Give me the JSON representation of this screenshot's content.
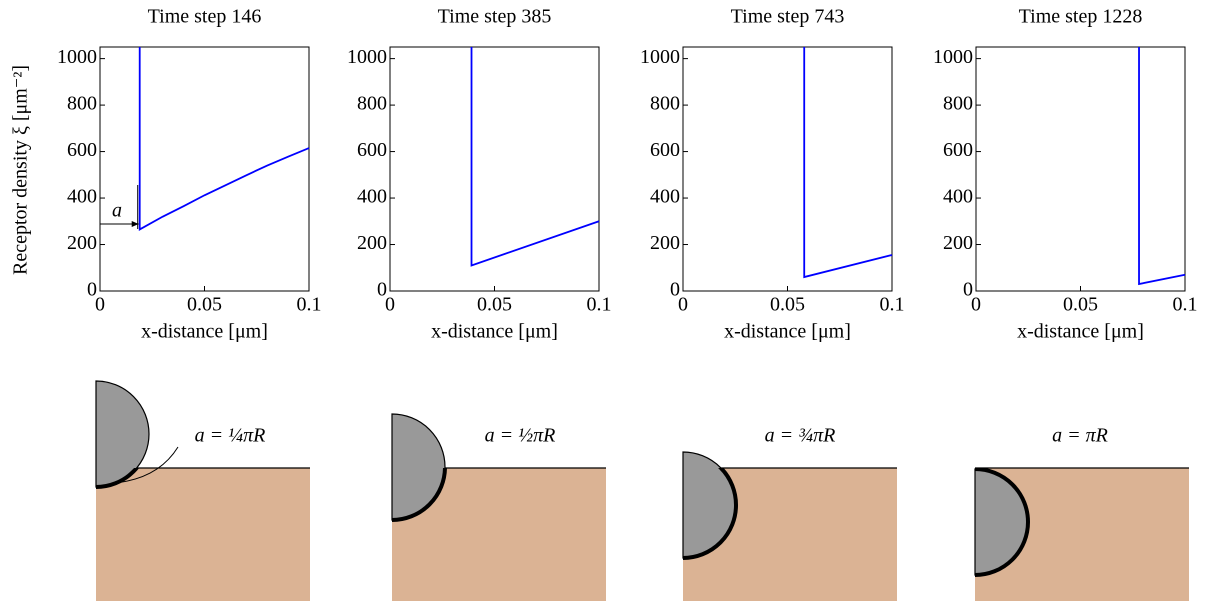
{
  "chart_data": [
    {
      "type": "line",
      "title": "Time step 146",
      "xlabel": "x-distance [μm]",
      "ylabel": "Receptor density ξ [μm⁻²]",
      "xlim": [
        0,
        0.1
      ],
      "ylim": [
        0,
        1050
      ],
      "xticks": [
        0,
        0.05,
        0.1
      ],
      "yticks": [
        0,
        200,
        400,
        600,
        800,
        1000
      ],
      "annotation": "a",
      "series": [
        {
          "color": "#0000ff",
          "x": [
            0.019,
            0.019,
            0.03,
            0.04,
            0.05,
            0.06,
            0.07,
            0.08,
            0.09,
            0.1
          ],
          "values": [
            1050,
            265,
            320,
            365,
            412,
            455,
            498,
            540,
            578,
            615
          ]
        }
      ]
    },
    {
      "type": "line",
      "title": "Time step 385",
      "xlabel": "x-distance [μm]",
      "xlim": [
        0,
        0.1
      ],
      "ylim": [
        0,
        1050
      ],
      "xticks": [
        0,
        0.05,
        0.1
      ],
      "yticks": [
        0,
        200,
        400,
        600,
        800,
        1000
      ],
      "series": [
        {
          "color": "#0000ff",
          "x": [
            0.039,
            0.039,
            0.1
          ],
          "values": [
            1050,
            110,
            300
          ]
        }
      ]
    },
    {
      "type": "line",
      "title": "Time step 743",
      "xlabel": "x-distance [μm]",
      "xlim": [
        0,
        0.1
      ],
      "ylim": [
        0,
        1050
      ],
      "xticks": [
        0,
        0.05,
        0.1
      ],
      "yticks": [
        0,
        200,
        400,
        600,
        800,
        1000
      ],
      "series": [
        {
          "color": "#0000ff",
          "x": [
            0.058,
            0.058,
            0.1
          ],
          "values": [
            1050,
            60,
            155
          ]
        }
      ]
    },
    {
      "type": "line",
      "title": "Time step 1228",
      "xlabel": "x-distance [μm]",
      "xlim": [
        0,
        0.1
      ],
      "ylim": [
        0,
        1050
      ],
      "xticks": [
        0,
        0.05,
        0.1
      ],
      "yticks": [
        0,
        200,
        400,
        600,
        800,
        1000
      ],
      "series": [
        {
          "color": "#0000ff",
          "x": [
            0.078,
            0.078,
            0.1
          ],
          "values": [
            1050,
            30,
            70
          ]
        }
      ]
    }
  ],
  "diagrams": [
    {
      "label": "a = ¼πR"
    },
    {
      "label": "a = ½πR"
    },
    {
      "label": "a = ¾πR"
    },
    {
      "label": "a = πR"
    }
  ]
}
